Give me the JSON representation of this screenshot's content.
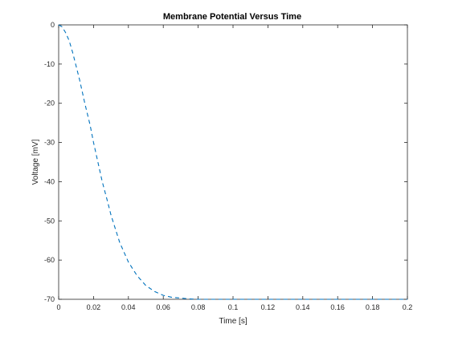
{
  "chart_data": {
    "type": "line",
    "title": "Membrane Potential Versus Time",
    "xlabel": "Time [s]",
    "ylabel": "Voltage [mV]",
    "xlim": [
      0,
      0.2
    ],
    "ylim": [
      -70,
      0
    ],
    "x_ticks": [
      0,
      0.02,
      0.04,
      0.06,
      0.08,
      0.1,
      0.12,
      0.14,
      0.16,
      0.18,
      0.2
    ],
    "x_tick_labels": [
      "0",
      "0.02",
      "0.04",
      "0.06",
      "0.08",
      "0.1",
      "0.12",
      "0.14",
      "0.16",
      "0.18",
      "0.2"
    ],
    "y_ticks": [
      0,
      -10,
      -20,
      -30,
      -40,
      -50,
      -60,
      -70
    ],
    "y_tick_labels": [
      "0",
      "-10",
      "-20",
      "-30",
      "-40",
      "-50",
      "-60",
      "-70"
    ],
    "grid": false,
    "legend": "none",
    "series": [
      {
        "color": "#0072BD",
        "line_style": "dashed",
        "x": [
          0,
          0.002,
          0.004,
          0.006,
          0.008,
          0.01,
          0.012,
          0.015,
          0.018,
          0.02,
          0.022,
          0.025,
          0.028,
          0.03,
          0.035,
          0.04,
          0.045,
          0.05,
          0.055,
          0.06,
          0.065,
          0.07,
          0.075,
          0.08,
          0.09,
          0.1,
          0.12,
          0.14,
          0.16,
          0.18,
          0.2
        ],
        "y": [
          0,
          -0.5,
          -2,
          -4,
          -7,
          -10.5,
          -14,
          -20,
          -25.5,
          -30,
          -34,
          -40,
          -45,
          -48.5,
          -55.5,
          -60.5,
          -64,
          -66.5,
          -68,
          -69,
          -69.5,
          -69.7,
          -69.9,
          -70,
          -70,
          -70,
          -70,
          -70,
          -70,
          -70,
          -70
        ]
      }
    ]
  }
}
